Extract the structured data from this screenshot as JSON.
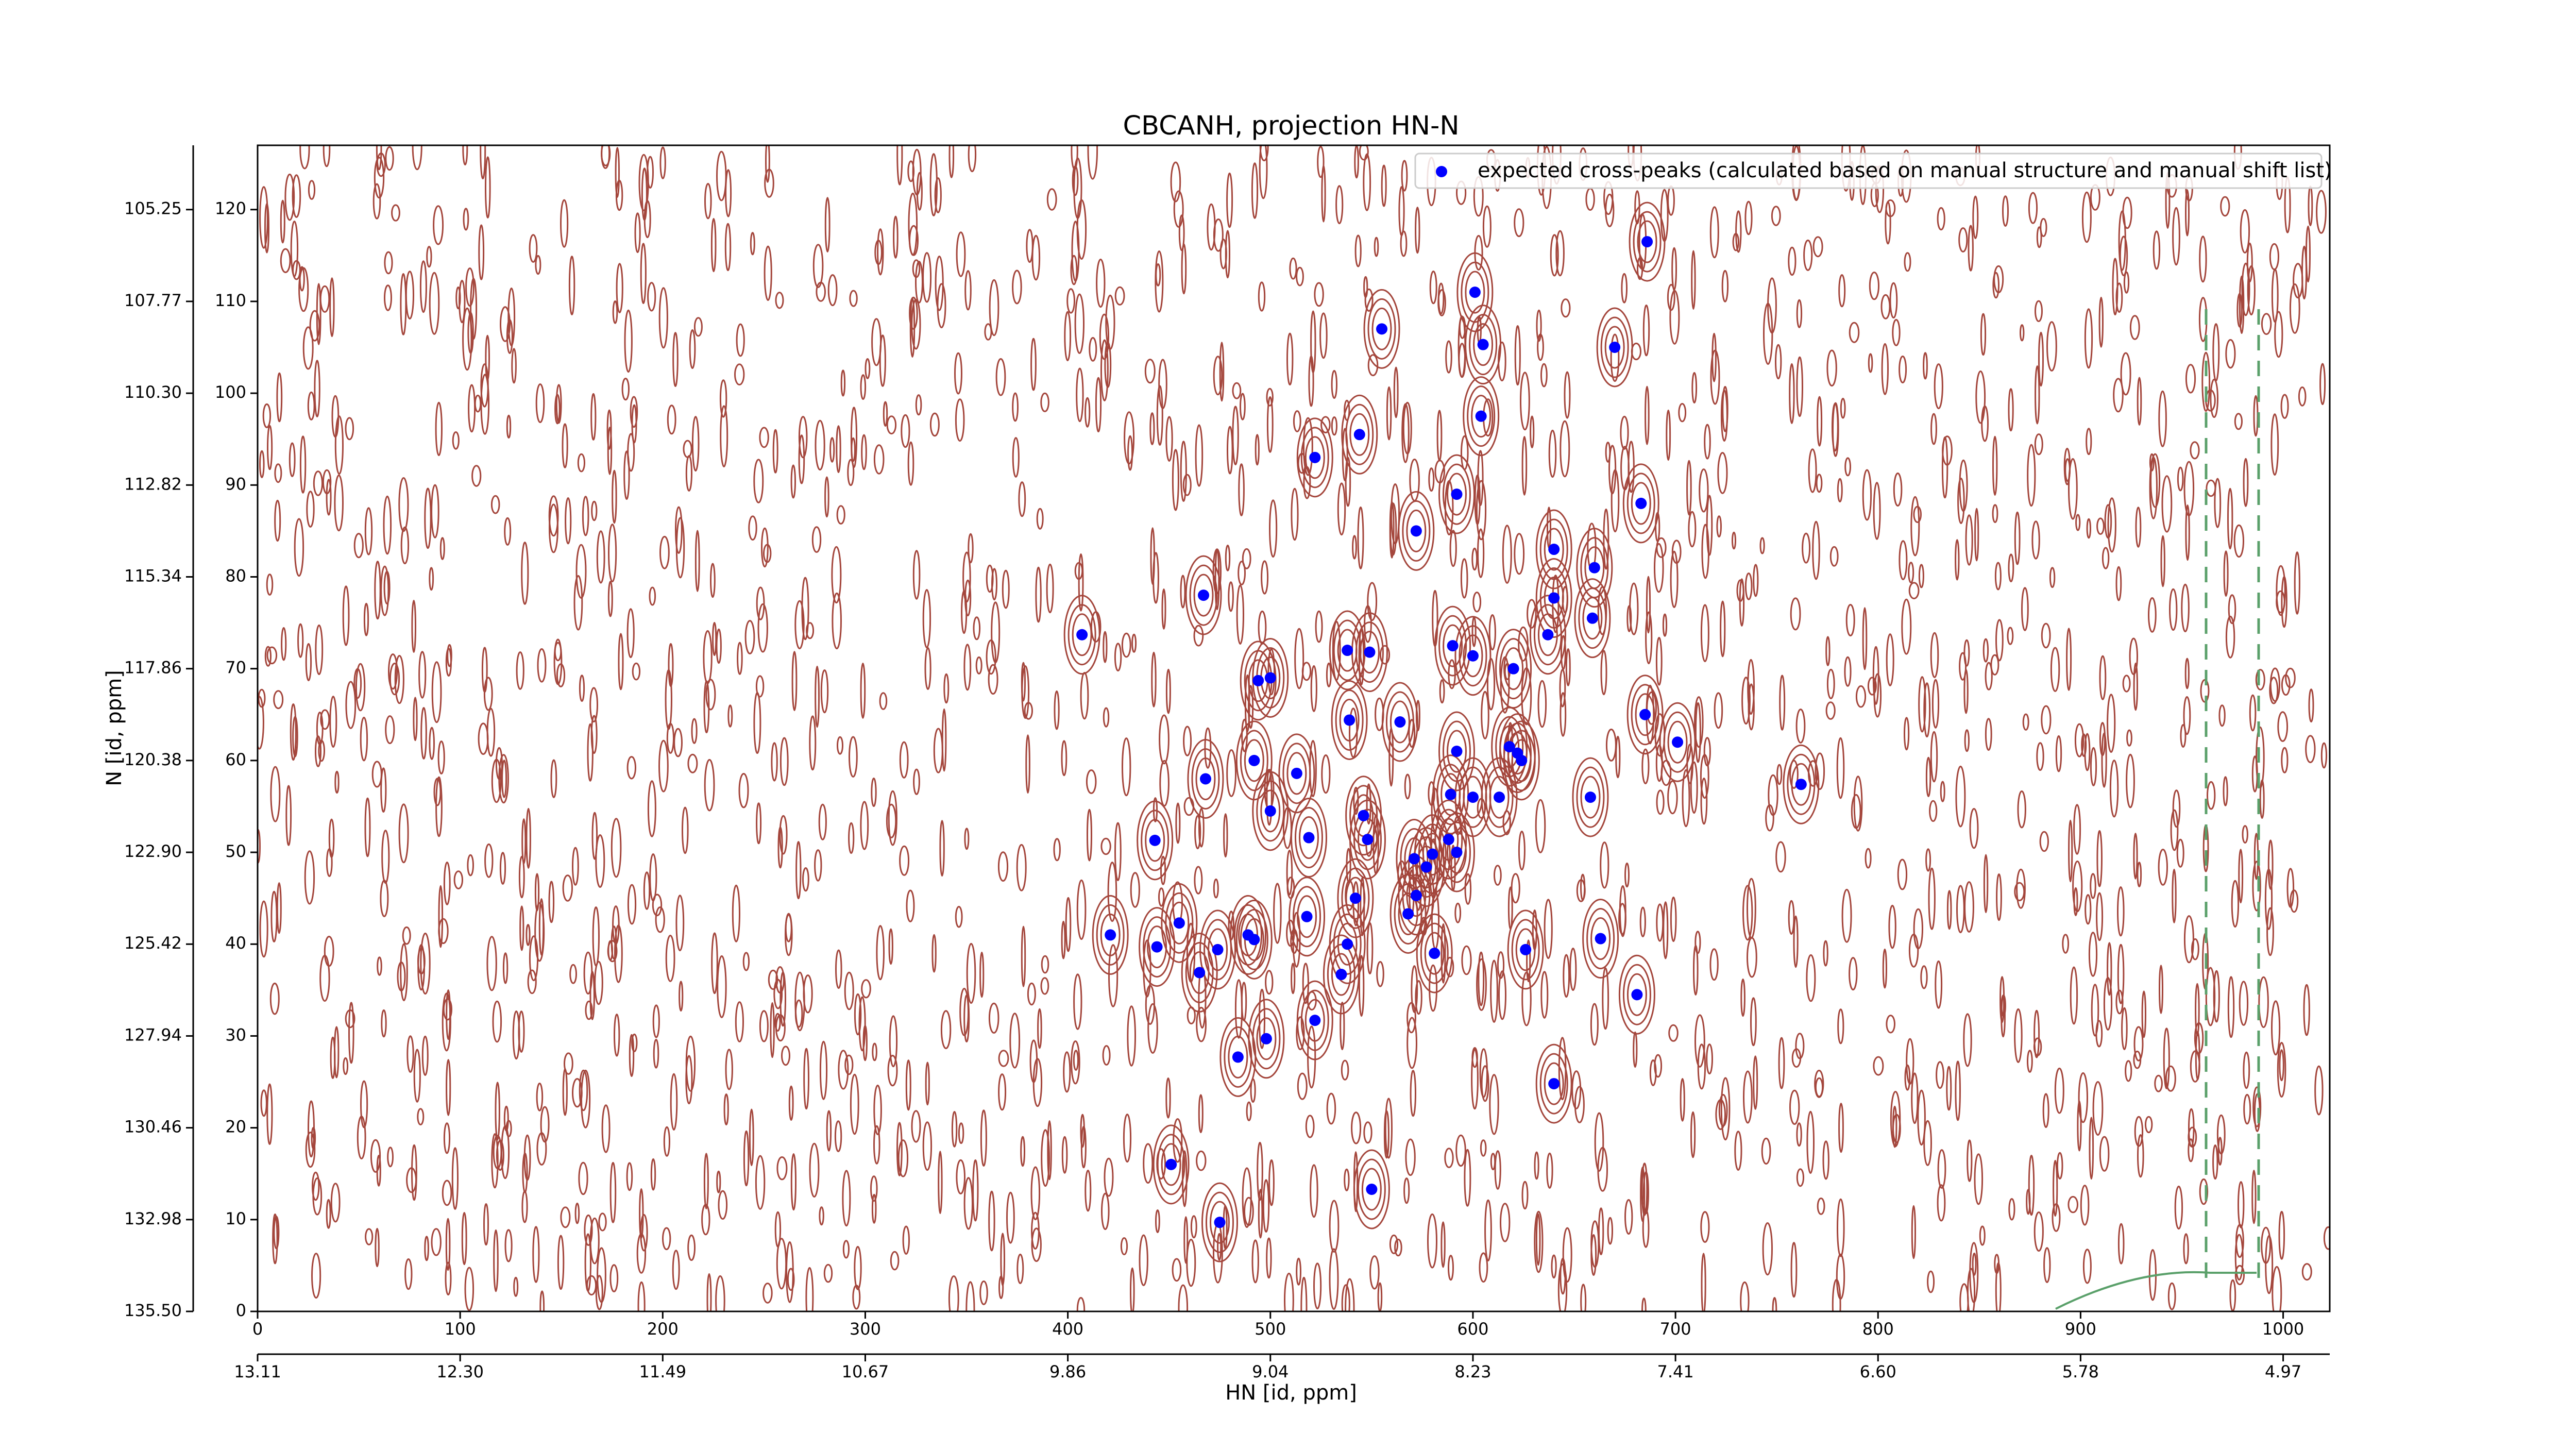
{
  "chart_data": {
    "type": "scatter",
    "title": "CBCANH, projection HN-N",
    "xlabel": "HN [id, ppm]",
    "ylabel": "N [id, ppm]",
    "xlim": [
      0,
      1023
    ],
    "ylim": [
      0,
      127
    ],
    "xticks": [
      0,
      100,
      200,
      300,
      400,
      500,
      600,
      700,
      800,
      900,
      1000
    ],
    "yticks": [
      0,
      10,
      20,
      30,
      40,
      50,
      60,
      70,
      80,
      90,
      100,
      110,
      120
    ],
    "x2ticks": [
      {
        "value": 0,
        "label": "13.11"
      },
      {
        "value": 100,
        "label": "12.30"
      },
      {
        "value": 200,
        "label": "11.49"
      },
      {
        "value": 300,
        "label": "10.67"
      },
      {
        "value": 400,
        "label": "9.86"
      },
      {
        "value": 500,
        "label": "9.04"
      },
      {
        "value": 600,
        "label": "8.23"
      },
      {
        "value": 700,
        "label": "7.41"
      },
      {
        "value": 800,
        "label": "6.60"
      },
      {
        "value": 900,
        "label": "5.78"
      },
      {
        "value": 1000,
        "label": "4.97"
      }
    ],
    "y2ticks": [
      {
        "value": 0,
        "label": "135.50"
      },
      {
        "value": 10,
        "label": "132.98"
      },
      {
        "value": 20,
        "label": "130.46"
      },
      {
        "value": 30,
        "label": "127.94"
      },
      {
        "value": 40,
        "label": "125.42"
      },
      {
        "value": 50,
        "label": "122.90"
      },
      {
        "value": 60,
        "label": "120.38"
      },
      {
        "value": 70,
        "label": "117.86"
      },
      {
        "value": 80,
        "label": "115.34"
      },
      {
        "value": 90,
        "label": "112.82"
      },
      {
        "value": 100,
        "label": "110.30"
      },
      {
        "value": 110,
        "label": "107.77"
      },
      {
        "value": 120,
        "label": "105.25"
      }
    ],
    "legend": "upper right",
    "series": [
      {
        "name": "expected cross-peaks (calculated based on manual structure and manual shift list)",
        "color": "#0000ff",
        "x": [
          686,
          601,
          555,
          605,
          670,
          604,
          522,
          544,
          592,
          683,
          572,
          640,
          660,
          467,
          640,
          659,
          407,
          637,
          590,
          538,
          549,
          600,
          620,
          500,
          494,
          685,
          539,
          564,
          701,
          618,
          592,
          622,
          624,
          492,
          513,
          468,
          762,
          589,
          600,
          613,
          658,
          500,
          546,
          548,
          519,
          443,
          588,
          592,
          580,
          571,
          577,
          542,
          572,
          518,
          568,
          455,
          421,
          489,
          492,
          663,
          444,
          474,
          538,
          626,
          581,
          465,
          535,
          681,
          522,
          498,
          484,
          640,
          451,
          550,
          475
        ],
        "y": [
          116.5,
          111,
          107,
          105.3,
          105,
          97.5,
          93,
          95.5,
          89,
          88,
          85,
          83,
          81,
          78,
          77.7,
          75.5,
          73.7,
          73.7,
          72.5,
          72,
          71.8,
          71.4,
          70,
          69,
          68.7,
          65,
          64.4,
          64.2,
          62,
          61.5,
          61,
          60.8,
          60,
          60,
          58.6,
          58,
          57.4,
          56.3,
          56,
          56,
          56,
          54.5,
          54,
          51.4,
          51.6,
          51.3,
          51.4,
          50,
          49.8,
          49.3,
          48.4,
          45,
          45.3,
          43,
          43.3,
          42.3,
          41,
          41,
          40.5,
          40.6,
          39.7,
          39.4,
          40,
          39.4,
          39,
          36.9,
          36.7,
          34.5,
          31.7,
          29.7,
          27.7,
          24.8,
          16,
          13.3,
          9.7
        ]
      }
    ]
  }
}
